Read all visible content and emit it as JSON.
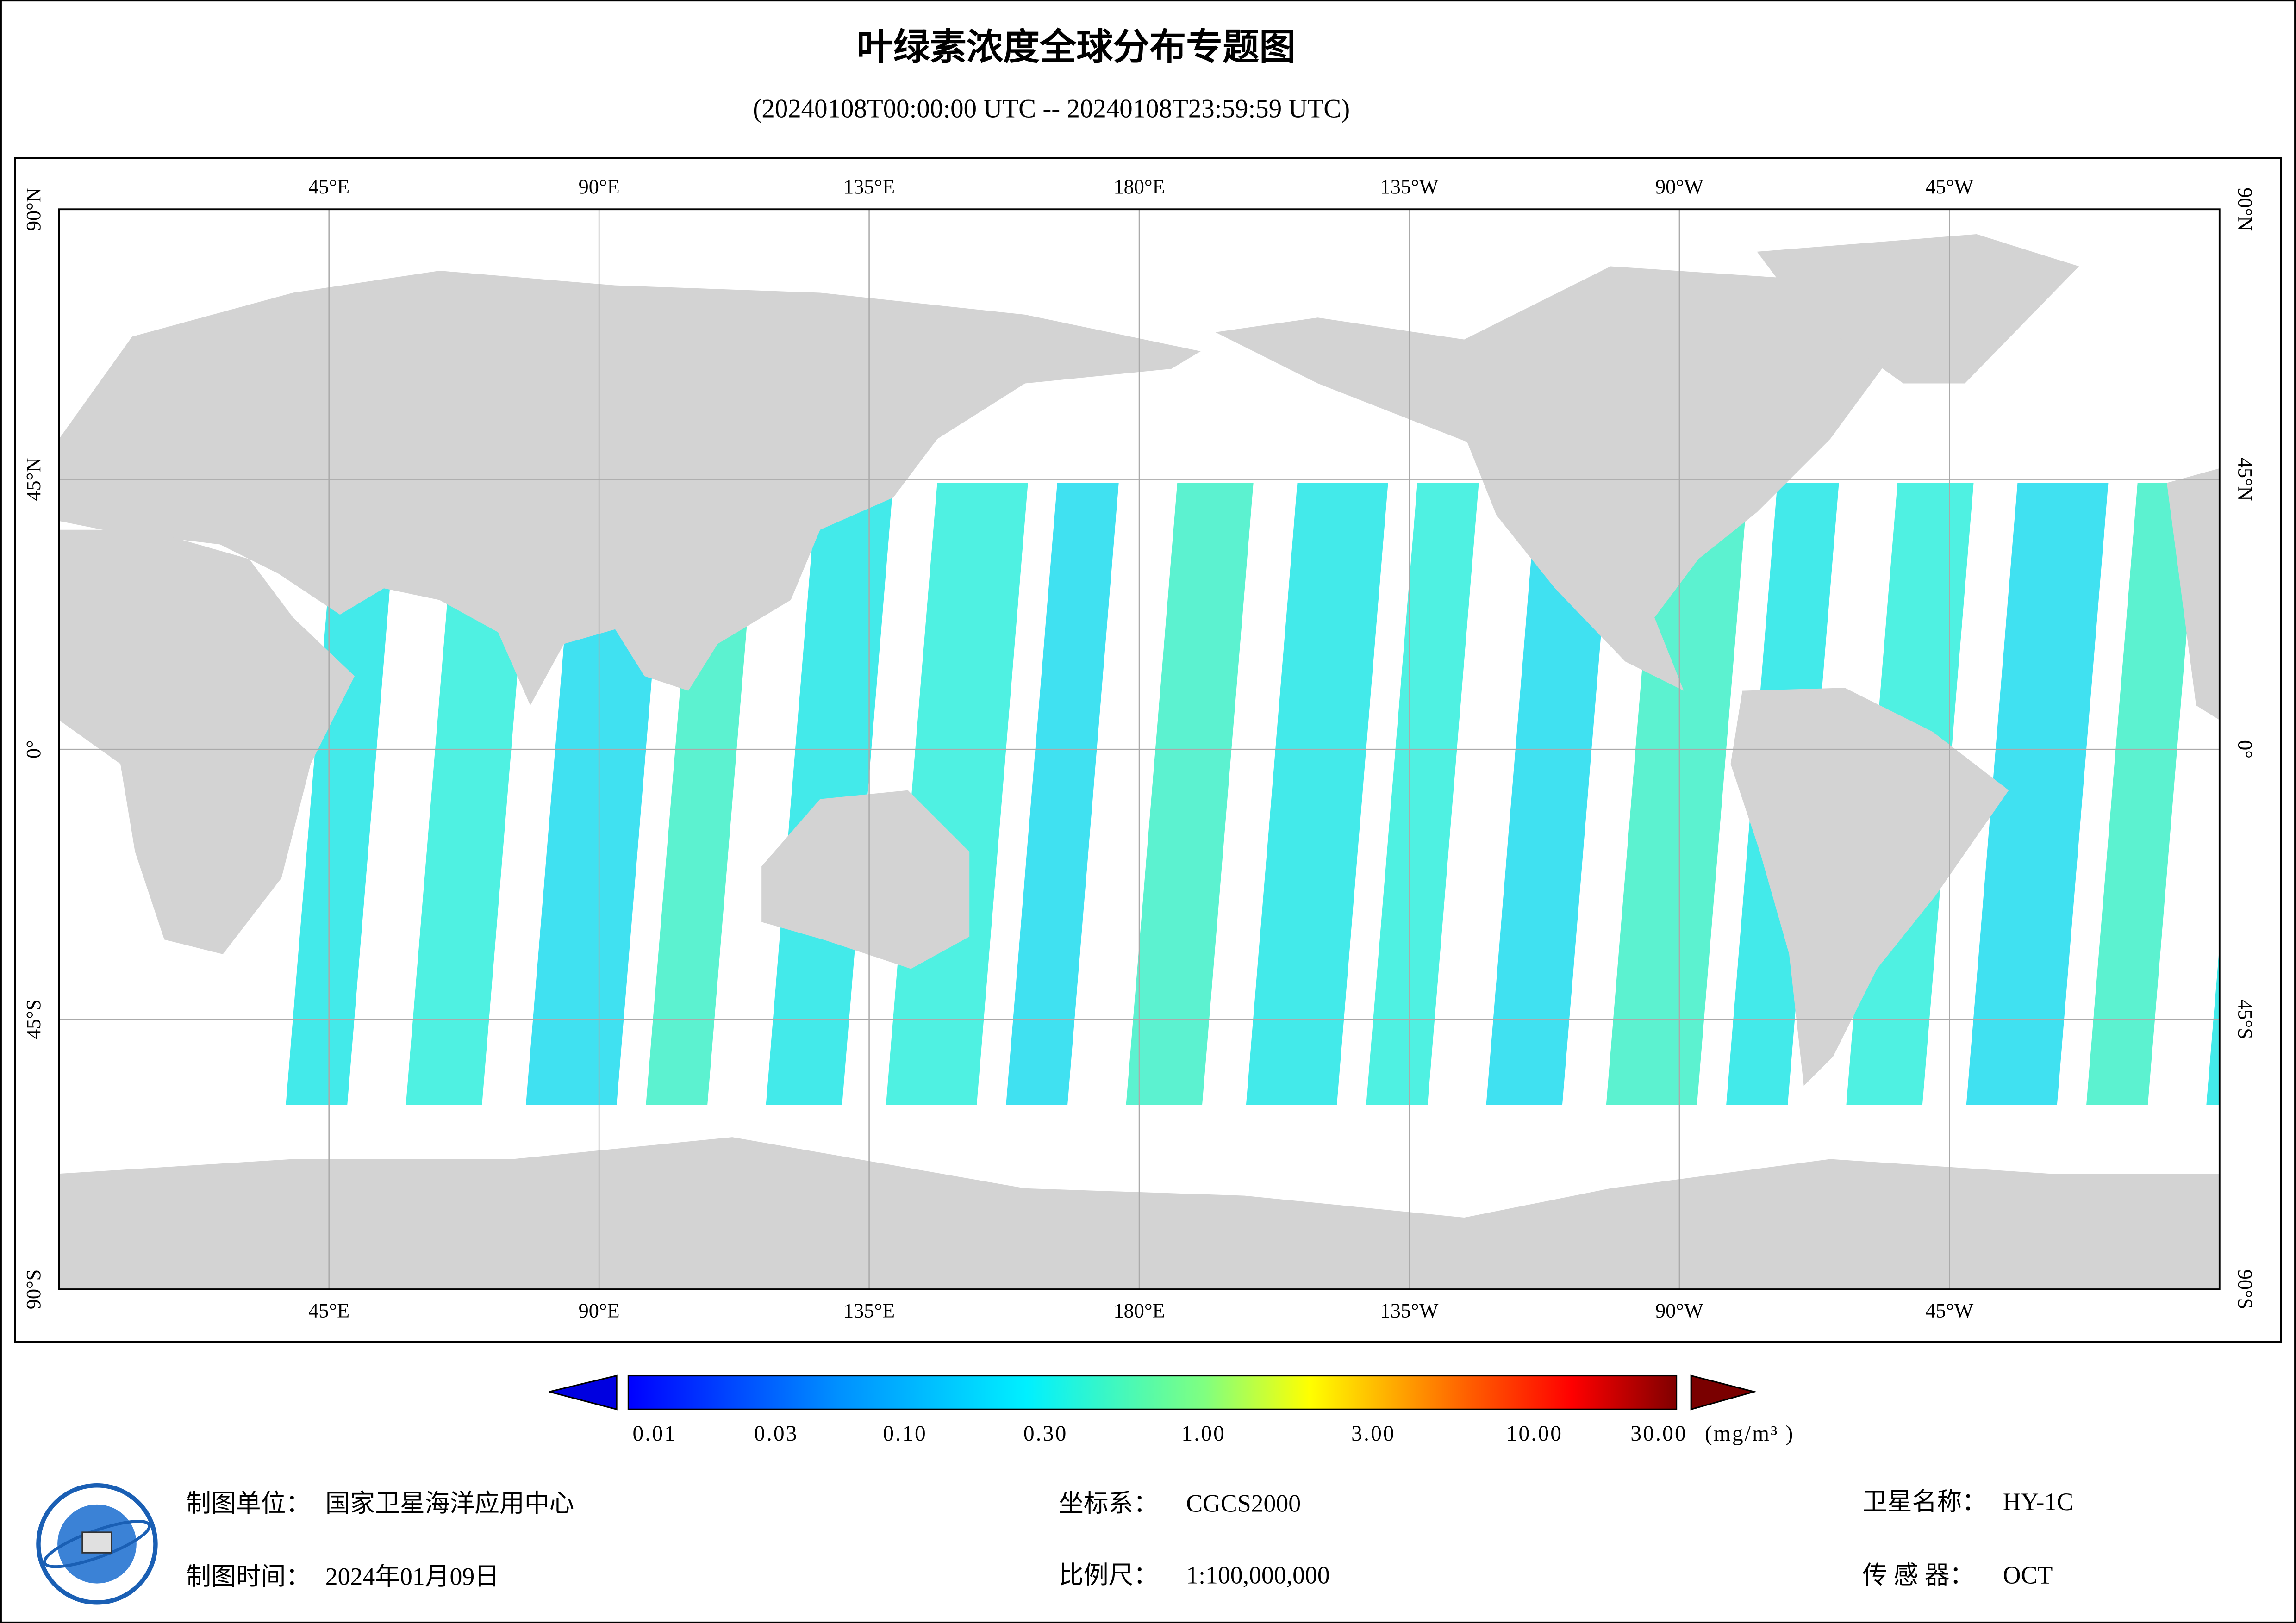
{
  "title": "叶绿素浓度全球分布专题图",
  "subtitle": "(20240108T00:00:00 UTC -- 20240108T23:59:59 UTC)",
  "map": {
    "lon_labels": [
      "45°E",
      "90°E",
      "135°E",
      "180°E",
      "135°W",
      "90°W",
      "45°W"
    ],
    "lat_labels": [
      "90°N",
      "45°N",
      "0°",
      "45°S",
      "90°S"
    ]
  },
  "colorbar": {
    "labels": [
      "0.01",
      "0.03",
      "0.10",
      "0.30",
      "1.00",
      "3.00",
      "10.00",
      "30.00"
    ],
    "unit": "(mg/m³ )"
  },
  "footer": {
    "unit_label": "制图单位：",
    "unit": "国家卫星海洋应用中心",
    "crs_label": "坐标系：",
    "crs": "CGCS2000",
    "satellite_label": "卫星名称：",
    "satellite": "HY-1C",
    "date_label": "制图时间：",
    "date": "2024年01月09日",
    "scale_label": "比例尺：",
    "scale": "1:100,000,000",
    "sensor_label": "传 感 器：",
    "sensor": "OCT"
  }
}
